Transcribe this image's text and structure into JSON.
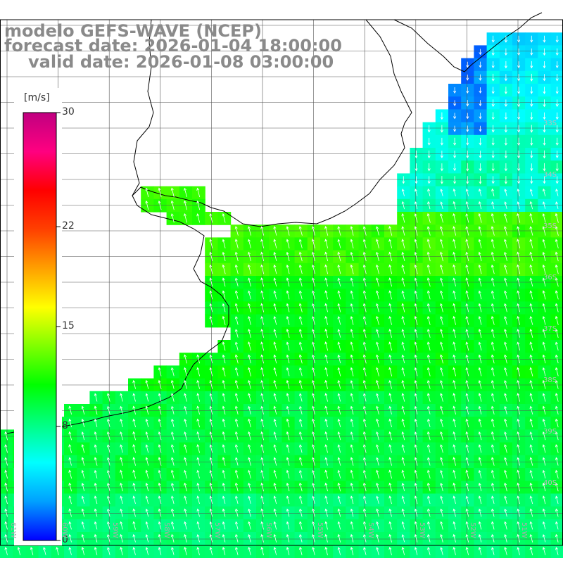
{
  "header": {
    "line1": "modelo GEFS-WAVE (NCEP)",
    "line2": "forecast date: 2026-01-04 18:00:00",
    "line3": "valid date: 2026-01-08 03:00:00"
  },
  "colorbar": {
    "unit": "[m/s]",
    "min": 0,
    "max": 30,
    "ticks": [
      "30",
      "22",
      "15",
      "8",
      "0"
    ],
    "tick_values": [
      30,
      22,
      15,
      8,
      0
    ],
    "stops": [
      "#0000ff",
      "#00a0ff",
      "#00ffff",
      "#00ff80",
      "#00ff00",
      "#80ff00",
      "#ffff00",
      "#ffa000",
      "#ff4000",
      "#ff0000",
      "#ff0080",
      "#c00080"
    ]
  },
  "map": {
    "lon_labels": [
      "61W",
      "60W",
      "59W",
      "58W",
      "57W",
      "56W",
      "55W",
      "54W",
      "53W",
      "52W",
      "51W"
    ],
    "lat_labels": [
      "33S",
      "34S",
      "35S",
      "36S",
      "37S",
      "38S",
      "39S",
      "40S"
    ],
    "field": "wind speed"
  }
}
